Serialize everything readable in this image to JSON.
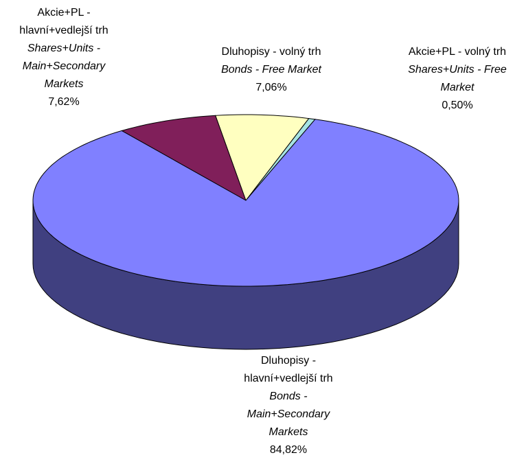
{
  "chart_data": {
    "type": "pie",
    "categories": [
      "Akcie+PL - volný trh",
      "Dluhopisy - volný trh",
      "Akcie+PL - hlavní+vedlejší trh",
      "Dluhopisy - hlavní+vedlejší trh"
    ],
    "categories_en": [
      "Shares+Units - Free Market",
      "Bonds - Free Market",
      "Shares+Units - Main+Secondary Markets",
      "Bonds - Main+Secondary Markets"
    ],
    "values": [
      0.5,
      7.06,
      7.62,
      84.82
    ],
    "value_labels": [
      "0,50%",
      "7,06%",
      "7,62%",
      "84,82%"
    ],
    "colors": [
      "#a6e3e3",
      "#ffffc0",
      "#801f5a",
      "#8080ff"
    ],
    "3d": true
  }
}
